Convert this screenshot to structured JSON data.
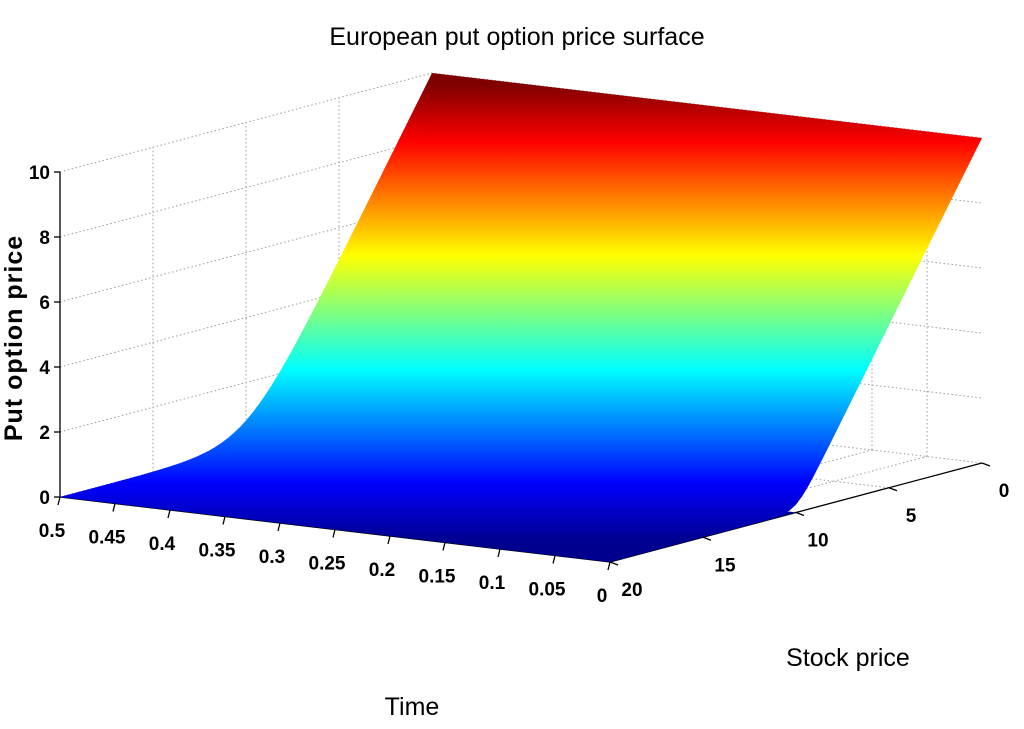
{
  "chart_data": {
    "type": "surface",
    "title": "European put option price surface",
    "xlabel": "Time",
    "ylabel": "Stock price",
    "zlabel": "Put option price",
    "time_ticks": [
      "0.5",
      "0.45",
      "0.4",
      "0.35",
      "0.3",
      "0.25",
      "0.2",
      "0.15",
      "0.1",
      "0.05",
      "0"
    ],
    "stock_ticks": [
      "20",
      "15",
      "10",
      "5",
      "0"
    ],
    "price_ticks": [
      "0",
      "2",
      "4",
      "6",
      "8",
      "10"
    ],
    "time_range": [
      0,
      0.5
    ],
    "stock_range": [
      0,
      20
    ],
    "price_range": [
      0,
      10
    ],
    "strike_estimate": 10,
    "colormap": [
      "#00008f",
      "#0000ff",
      "#00ffff",
      "#ffff00",
      "#ff0000",
      "#800000"
    ],
    "grid": true,
    "surface_samples": [
      {
        "time": 0.5,
        "stock": 0,
        "price": 10
      },
      {
        "time": 0.5,
        "stock": 10,
        "price": 0.1
      },
      {
        "time": 0.5,
        "stock": 20,
        "price": 0
      },
      {
        "time": 0,
        "stock": 0,
        "price": 10
      },
      {
        "time": 0,
        "stock": 10,
        "price": 0
      },
      {
        "time": 0,
        "stock": 20,
        "price": 0
      }
    ]
  }
}
